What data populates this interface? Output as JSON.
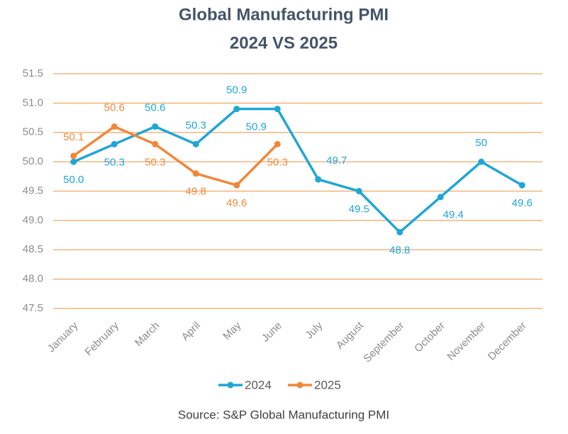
{
  "chart_data": {
    "type": "line",
    "title": "Global Manufacturing PMI",
    "subtitle": "2024 VS 2025",
    "source": "Source: S&P Global Manufacturing PMI",
    "categories": [
      "January",
      "February",
      "March",
      "April",
      "May",
      "June",
      "July",
      "August",
      "September",
      "October",
      "November",
      "December"
    ],
    "series": [
      {
        "name": "2024",
        "color": "#1fa6d6",
        "values": [
          50.0,
          50.3,
          50.6,
          50.3,
          50.9,
          50.9,
          49.7,
          49.5,
          48.8,
          49.4,
          50,
          49.6
        ],
        "value_labels": [
          "50.0",
          "50.3",
          "50.6",
          "50.3",
          "50.9",
          "50.9",
          "49.7",
          "49.5",
          "48.8",
          "49.4",
          "50",
          "49.6"
        ]
      },
      {
        "name": "2025",
        "color": "#f0883a",
        "values": [
          50.1,
          50.6,
          50.3,
          49.8,
          49.6,
          50.3,
          null,
          null,
          null,
          null,
          null,
          null
        ]
      }
    ],
    "ylim": [
      47.5,
      51.5
    ],
    "yticks": [
      47.5,
      {
        "value": 48,
        "label": "48.0"
      },
      48.5,
      {
        "value": 49,
        "label": "49.0"
      },
      49.5,
      {
        "value": 50,
        "label": "50.0"
      },
      50.5,
      {
        "value": 51,
        "label": "51.0"
      },
      51.5
    ],
    "grid": true,
    "grid_color": "#f2a766",
    "legend": "bottom"
  }
}
